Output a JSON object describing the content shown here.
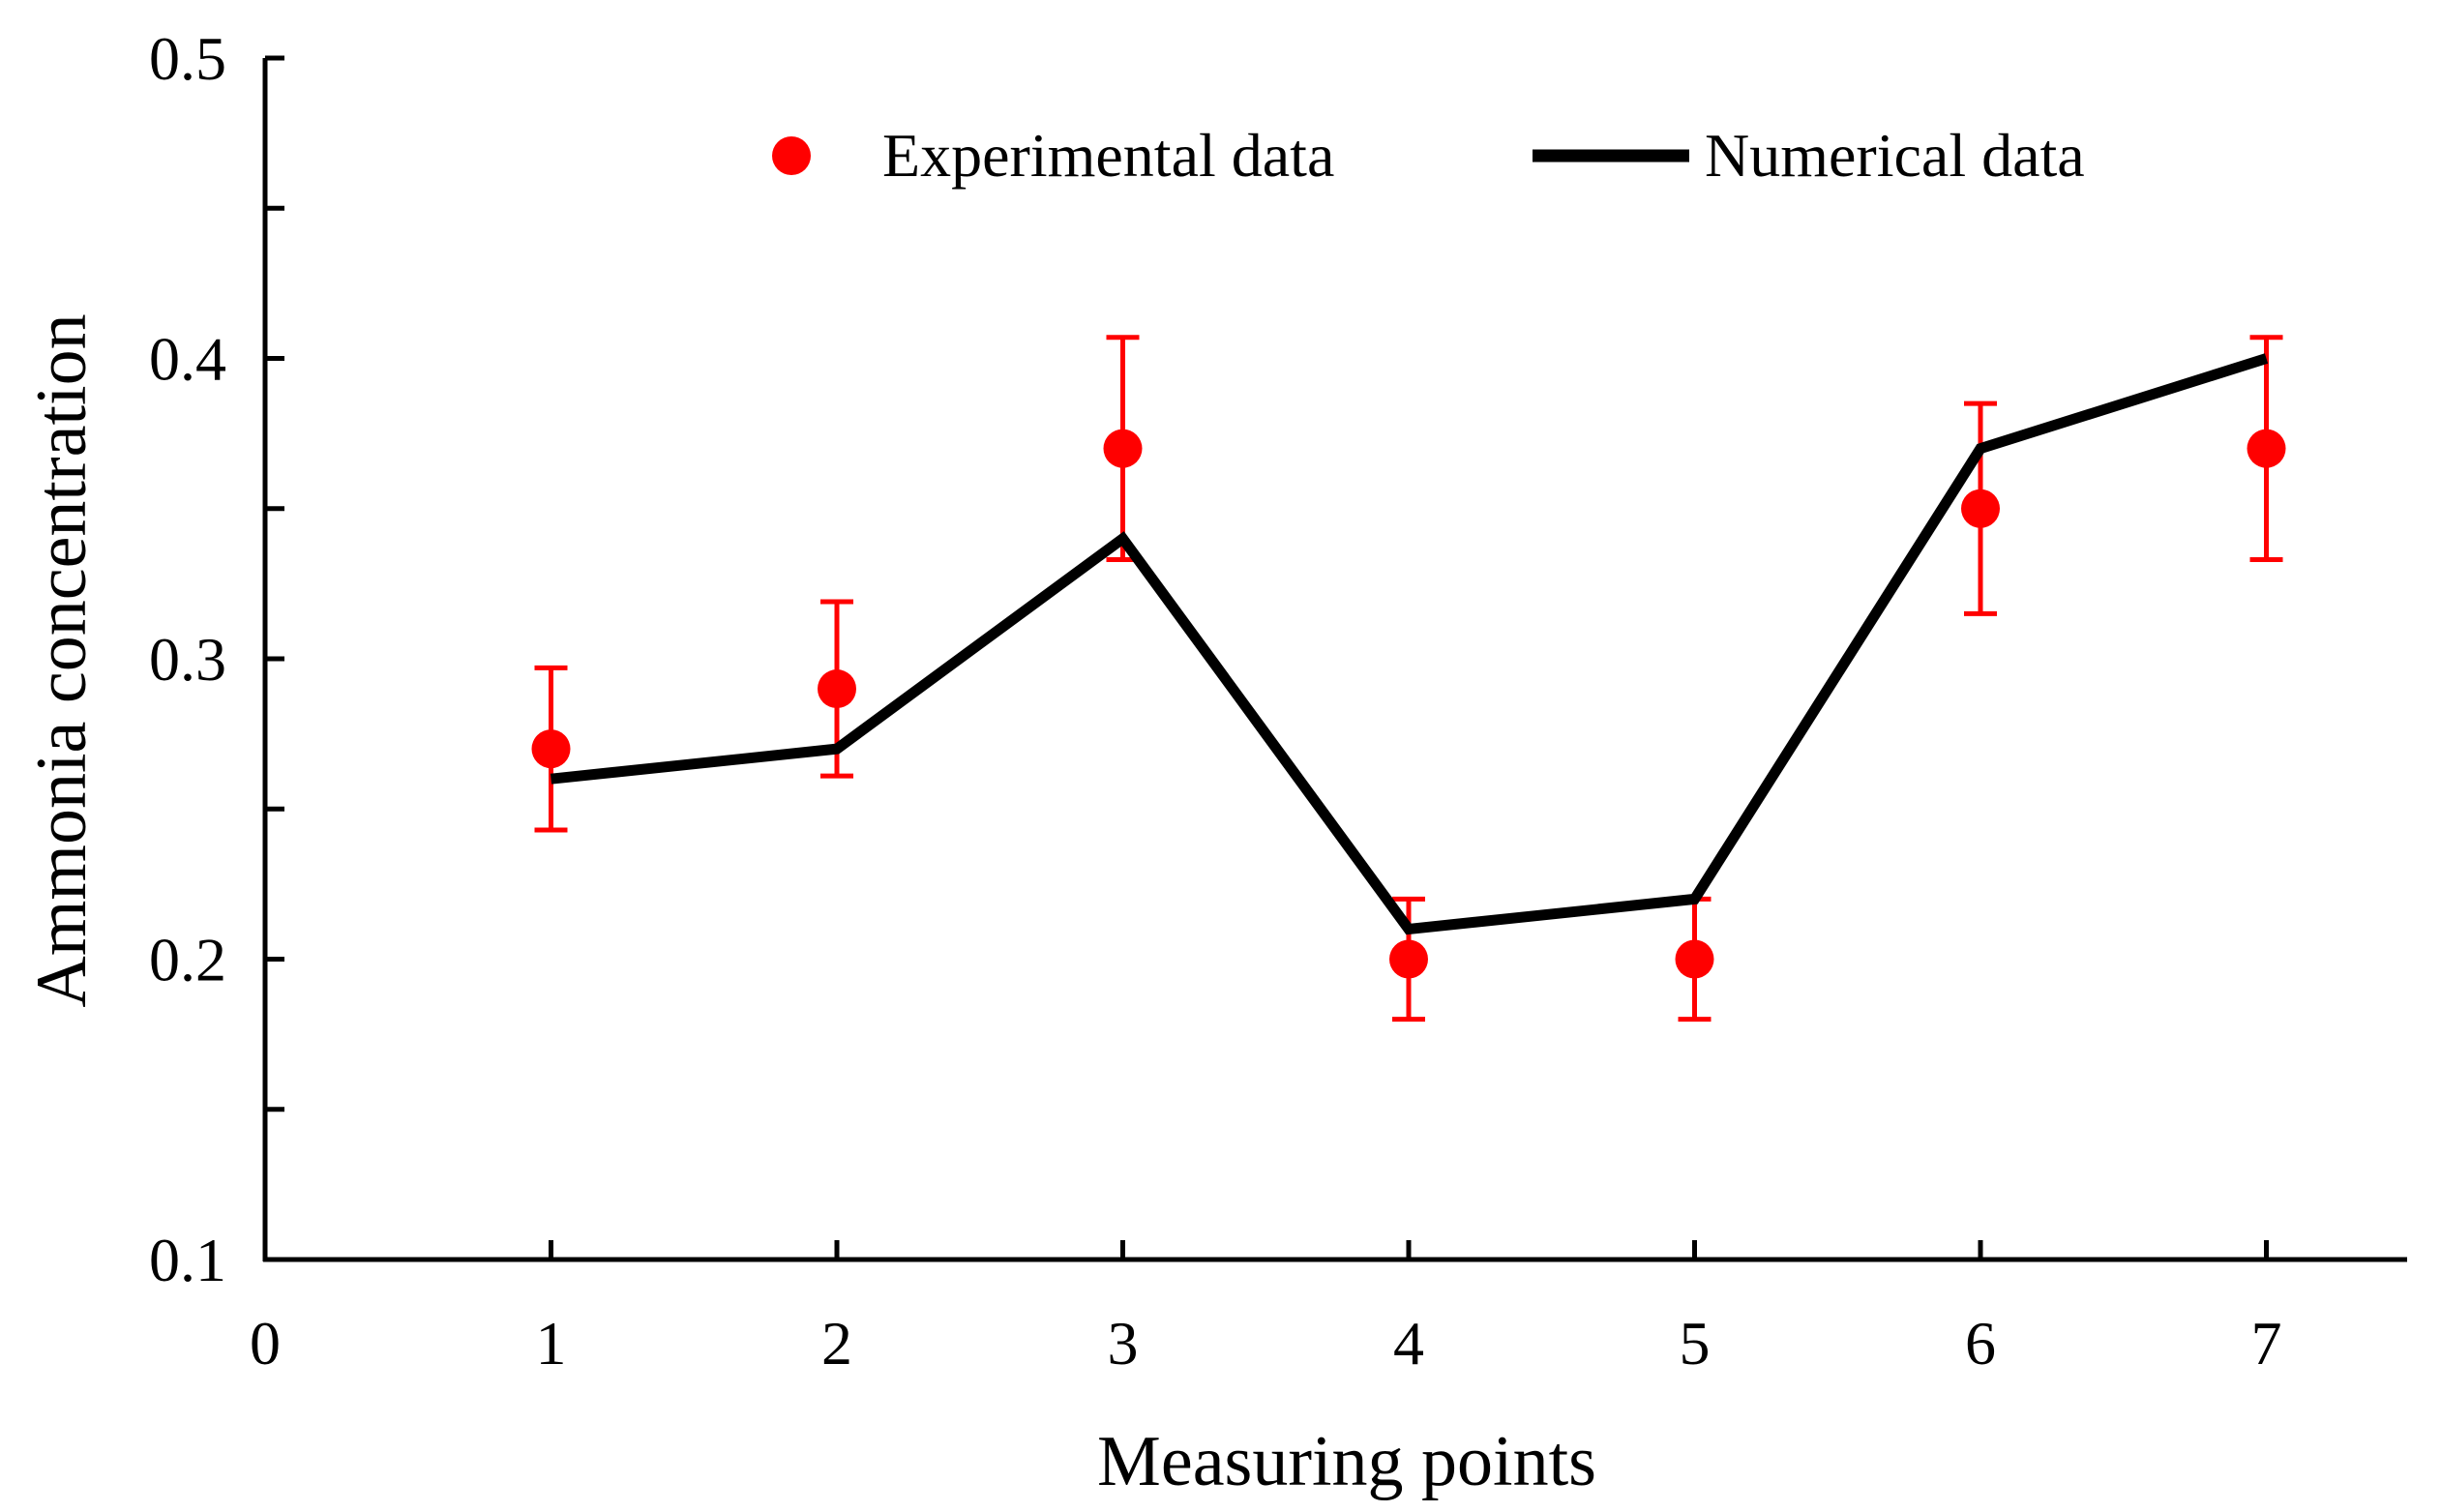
{
  "chart_data": {
    "type": "line",
    "title": "",
    "xlabel": "Measuring points",
    "ylabel": "Ammonia concentration",
    "xlim": [
      0,
      7.5
    ],
    "ylim": [
      0.1,
      0.5
    ],
    "x_ticks": [
      0,
      1,
      2,
      3,
      4,
      5,
      6,
      7
    ],
    "x_tick_labels": [
      "0",
      "1",
      "2",
      "3",
      "4",
      "5",
      "6",
      "7"
    ],
    "y_ticks_major": [
      0.1,
      0.2,
      0.3,
      0.4,
      0.5
    ],
    "y_tick_labels": [
      "0.1",
      "0.2",
      "0.3",
      "0.4",
      "0.5"
    ],
    "y_ticks_minor": [
      0.15,
      0.25,
      0.35,
      0.45
    ],
    "grid": false,
    "legend_position": "top",
    "series": [
      {
        "name": "Experimental data",
        "kind": "scatter",
        "color": "#ff0000",
        "x": [
          1,
          2,
          3,
          4,
          5,
          6,
          7
        ],
        "y": [
          0.27,
          0.29,
          0.37,
          0.2,
          0.2,
          0.35,
          0.37
        ],
        "error_low": [
          0.243,
          0.261,
          0.333,
          0.18,
          0.18,
          0.315,
          0.333
        ],
        "error_high": [
          0.297,
          0.319,
          0.407,
          0.22,
          0.22,
          0.385,
          0.407
        ]
      },
      {
        "name": "Numerical data",
        "kind": "line",
        "color": "#000000",
        "x": [
          1,
          2,
          3,
          4,
          5,
          6,
          7
        ],
        "y": [
          0.26,
          0.27,
          0.34,
          0.21,
          0.22,
          0.37,
          0.4
        ]
      }
    ]
  }
}
